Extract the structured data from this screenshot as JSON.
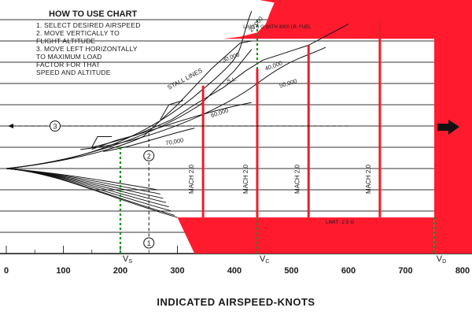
{
  "instructions": {
    "title": "HOW TO USE CHART",
    "steps": [
      "1.  SELECT DESIRED AIRSPEED",
      "2.  MOVE VERTICALLY TO",
      "     FLIGHT ALTITUDE",
      "3.  MOVE LEFT HORIZONTALLY",
      "     TO MAXIMUM LOAD",
      "     FACTOR FOR THAT",
      "     SPEED AND ALTITUDE"
    ]
  },
  "colors": {
    "envelope_red": "#ff1a2e",
    "mach_line_red": "#e8202a",
    "marker_green": "#1e8c1e",
    "grid": "#333333"
  },
  "chart_data": {
    "type": "line",
    "xlabel": "INDICATED AIRSPEED-KNOTS",
    "xlim": [
      0,
      800
    ],
    "ylim": [
      -3,
      7.5
    ],
    "x_ticks": [
      0,
      100,
      200,
      300,
      400,
      500,
      600,
      700,
      800
    ],
    "grid": true,
    "limit_labels": {
      "upper": "LIMIT 6 G WITH 4000 LB. FUEL",
      "lower": "LIMIT -2.5 G"
    },
    "speed_markers": [
      {
        "label": "VS",
        "x": 200
      },
      {
        "label": "VC",
        "x": 440
      },
      {
        "label": "VD",
        "x": 750
      }
    ],
    "stall_lines_label": "STALL LINES",
    "altitude_labels": [
      "S.L.",
      "30,000",
      "20,000",
      "40,000",
      "50,000",
      "60,000",
      "70,000"
    ],
    "mach_lines": [
      {
        "label": "MACH 2.0",
        "x": 345,
        "y_top": 3.9
      },
      {
        "label": "MACH 2.0",
        "x": 440,
        "y_top": 4.7
      },
      {
        "label": "MACH 2.0",
        "x": 530,
        "y_top": 5.8
      },
      {
        "label": "MACH 2.0",
        "x": 655,
        "y_top": 6.9
      }
    ],
    "steps": [
      "1",
      "2",
      "3"
    ]
  }
}
